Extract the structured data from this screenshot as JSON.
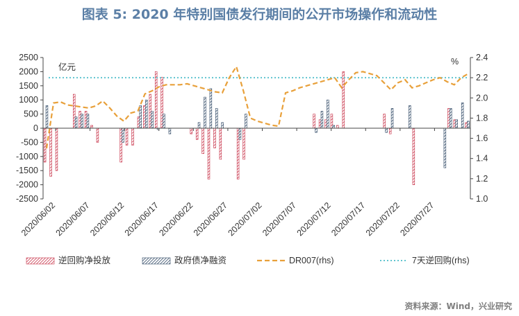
{
  "figure": {
    "title": "图表 5:   2020 年特别国债发行期间的公开市场操作和流动性",
    "source": "资料来源：Wind，兴业研究"
  },
  "colors": {
    "reverse_repo": "#c8344a",
    "govt_bond": "#2f4865",
    "dr007": "#e8a03a",
    "repo7d": "#5fc4cf",
    "axis": "#444444",
    "title": "#5b7fa6"
  },
  "chart_data": {
    "type": "bar",
    "y_left_label": "亿元",
    "y_right_label": "%",
    "y_left_range": [
      -2500,
      2500
    ],
    "y_left_ticks": [
      "2500",
      "2000",
      "1500",
      "1000",
      "500",
      "0",
      "-500",
      "-1000",
      "-1500",
      "-2000",
      "-2500"
    ],
    "y_right_range": [
      1.0,
      2.4
    ],
    "y_right_ticks": [
      "2.4",
      "2.2",
      "2.0",
      "1.8",
      "1.6",
      "1.4",
      "1.2",
      "1.0"
    ],
    "x_tick_labels": [
      "2020/06/02",
      "2020/06/07",
      "2020/06/12",
      "2020/06/17",
      "2020/06/22",
      "2020/06/27",
      "2020/07/02",
      "2020/07/07",
      "2020/07/12",
      "2020/07/17",
      "2020/07/22",
      "2020/07/27"
    ],
    "legend": [
      "逆回购净投放",
      "政府债净融资",
      "DR007(rhs)",
      "7天逆回购(rhs)"
    ],
    "reverse_repo_net": [
      -1200,
      -1700,
      -1500,
      0,
      0,
      1200,
      600,
      600,
      100,
      -500,
      0,
      0,
      0,
      -1200,
      -600,
      -600,
      400,
      800,
      1200,
      2000,
      1800,
      0,
      0,
      0,
      0,
      -200,
      -400,
      -900,
      -1800,
      -700,
      -1100,
      0,
      0,
      -1800,
      -1100,
      0,
      0,
      0,
      0,
      0,
      0,
      0,
      0,
      0,
      0,
      0,
      500,
      300,
      300,
      500,
      100,
      2000,
      0,
      0,
      0,
      0,
      0,
      0,
      500,
      -200,
      0,
      0,
      0,
      -2000,
      0,
      0,
      0,
      0,
      0,
      700,
      300,
      0,
      200
    ],
    "govt_bond_net": [
      800,
      0,
      0,
      0,
      0,
      400,
      500,
      500,
      0,
      0,
      0,
      0,
      0,
      -500,
      0,
      0,
      800,
      1000,
      600,
      -50,
      500,
      -200,
      0,
      0,
      0,
      0,
      200,
      1100,
      1400,
      700,
      200,
      0,
      0,
      -400,
      500,
      0,
      0,
      0,
      0,
      0,
      0,
      0,
      0,
      0,
      0,
      0,
      -150,
      600,
      1000,
      100,
      0,
      0,
      0,
      0,
      0,
      0,
      0,
      0,
      -150,
      700,
      0,
      0,
      800,
      0,
      0,
      0,
      0,
      0,
      -1400,
      700,
      300,
      900,
      250
    ],
    "dr007": [
      1.5,
      1.95,
      1.96,
      1.93,
      1.92,
      1.91,
      1.9,
      1.92,
      1.97,
      1.9,
      1.82,
      1.77,
      1.85,
      1.87,
      2.04,
      2.07,
      2.11,
      2.13,
      2.13,
      2.13,
      2.14,
      2.12,
      2.1,
      2.08,
      2.06,
      2.05,
      2.2,
      2.31,
      2.07,
      1.8,
      1.77,
      1.75,
      1.73,
      1.72,
      2.05,
      2.07,
      2.1,
      2.12,
      2.14,
      2.16,
      2.18,
      2.2,
      2.1,
      2.18,
      2.25,
      2.26,
      2.24,
      2.22,
      2.15,
      2.08,
      2.15,
      2.18,
      2.1,
      2.12,
      2.15,
      2.18,
      2.2,
      2.16,
      2.13,
      2.2,
      2.24
    ],
    "repo_7d": 2.2,
    "lines_rhs_sampling_note_free": true
  }
}
